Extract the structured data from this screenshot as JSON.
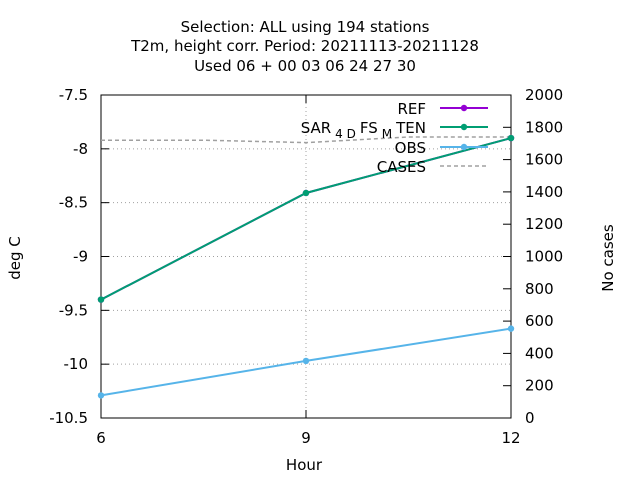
{
  "chart_data": {
    "type": "line",
    "title_lines": [
      "Selection: ALL using   194 stations",
      "T2m, height corr.   Period: 20211113-20211128",
      "Used  06 + 00 03 06 24 27 30"
    ],
    "xlabel": "Hour",
    "ylabel": "deg C",
    "y2label": "No cases",
    "x": [
      6,
      9,
      12
    ],
    "xticks": [
      "6",
      "9",
      "12"
    ],
    "xlim": [
      6,
      12
    ],
    "ylim": [
      -10.5,
      -7.5
    ],
    "yticks": [
      "-7.5",
      "-8",
      "-8.5",
      "-9",
      "-9.5",
      "-10",
      "-10.5"
    ],
    "y2lim": [
      0,
      2000
    ],
    "y2ticks": [
      "2000",
      "1800",
      "1600",
      "1400",
      "1200",
      "1000",
      "800",
      "600",
      "400",
      "200",
      "0"
    ],
    "grid": true,
    "legend_position": "top-right",
    "series": [
      {
        "name": "REF",
        "color": "#9400d3",
        "values": [
          -9.4,
          -8.41,
          -7.9
        ],
        "axis": "y"
      },
      {
        "name": "SAR_4D FS_M TEN",
        "name_main": "SAR",
        "name_sub1": "4 D",
        "name_mid": "FS",
        "name_sub2": "M",
        "name_tail": "TEN",
        "color": "#009e73",
        "values": [
          -9.4,
          -8.41,
          -7.9
        ],
        "axis": "y"
      },
      {
        "name": "OBS",
        "color": "#56b4e9",
        "values": [
          -10.29,
          -9.97,
          -9.67
        ],
        "axis": "y"
      },
      {
        "name": "CASES",
        "color": "#a0a0a0",
        "dashed": true,
        "x": [
          6,
          7.5,
          9,
          10.5,
          12
        ],
        "values": [
          1720,
          1720,
          1705,
          1740,
          1740
        ],
        "axis": "y2"
      }
    ]
  }
}
